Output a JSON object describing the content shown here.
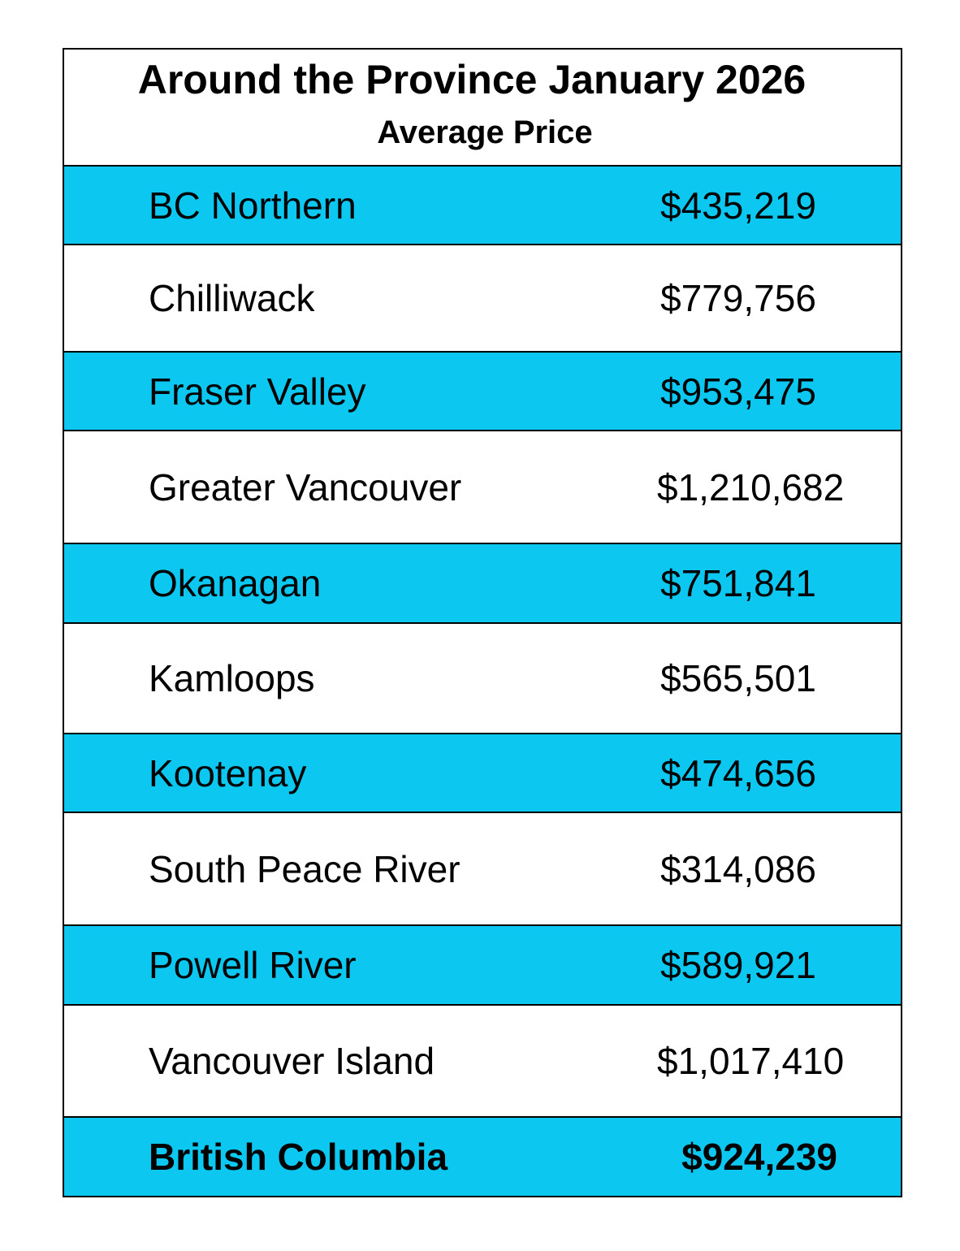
{
  "header": {
    "title": "Around the Province January 2026",
    "subtitle": "Average Price"
  },
  "table": {
    "rows": [
      [
        "BC Northern",
        "$435,219"
      ],
      [
        "Chilliwack",
        "$779,756"
      ],
      [
        "Fraser Valley",
        "$953,475"
      ],
      [
        "Greater Vancouver",
        "$1,210,682"
      ],
      [
        "Okanagan",
        "$751,841"
      ],
      [
        "Kamloops",
        "$565,501"
      ],
      [
        "Kootenay",
        "$474,656"
      ],
      [
        "South Peace River",
        "$314,086"
      ],
      [
        "Powell River",
        "$589,921"
      ],
      [
        "Vancouver Island",
        "$1,017,410"
      ]
    ],
    "total": [
      "British Columbia",
      "$924,239"
    ]
  }
}
